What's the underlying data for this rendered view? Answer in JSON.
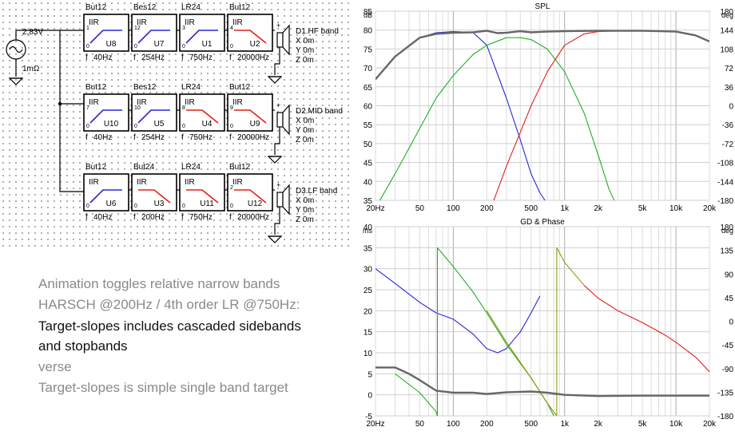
{
  "source": {
    "voltage": "2,83V",
    "resistance": "1mΩ"
  },
  "rows": [
    {
      "filters": [
        {
          "type": "But12",
          "id": "U8",
          "num": "1",
          "shape": "hp",
          "freq": "40Hz"
        },
        {
          "type": "Bes12",
          "id": "U7",
          "num": "12",
          "shape": "hp",
          "freq": "254Hz"
        },
        {
          "type": "LR24",
          "id": "U1",
          "num": "3",
          "shape": "hp",
          "freq": "750Hz"
        },
        {
          "type": "But12",
          "id": "U2",
          "num": "4",
          "shape": "lp",
          "freq": "20000Hz"
        }
      ],
      "driver": {
        "name": "D1.HF band",
        "x": "X 0m",
        "y": "Y 0m",
        "z": "Z 0m"
      }
    },
    {
      "filters": [
        {
          "type": "But12",
          "id": "U10",
          "num": "7",
          "shape": "hp",
          "freq": "40Hz"
        },
        {
          "type": "Bes12",
          "id": "U5",
          "num": "10",
          "shape": "hp",
          "freq": "254Hz"
        },
        {
          "type": "LR24",
          "id": "U4",
          "num": "8",
          "shape": "lp",
          "freq": "750Hz"
        },
        {
          "type": "But12",
          "id": "U9",
          "num": "9",
          "shape": "lp",
          "freq": "20000Hz"
        }
      ],
      "driver": {
        "name": "D2.MID band",
        "x": "X 0m",
        "y": "Y 0m",
        "z": "Z 0m"
      }
    },
    {
      "filters": [
        {
          "type": "But12",
          "id": "U6",
          "num": "",
          "shape": "hp",
          "freq": "40Hz"
        },
        {
          "type": "But24",
          "id": "U3",
          "num": "",
          "shape": "lp",
          "freq": "200Hz"
        },
        {
          "type": "LR24",
          "id": "U11",
          "num": "",
          "shape": "lp",
          "freq": "750Hz"
        },
        {
          "type": "But12",
          "id": "U12",
          "num": "2",
          "shape": "lp",
          "freq": "20000Hz"
        }
      ],
      "driver": {
        "name": "D3.LF band",
        "x": "X 0m",
        "y": "Y 0m",
        "z": "Z 0m"
      }
    }
  ],
  "block_label": "IIR",
  "caption": {
    "line1": "Animation toggles relative narrow bands",
    "line2": "HARSCH @200Hz / 4th order LR @750Hz:",
    "line3": "Target-slopes includes cascaded sidebands",
    "line4": "and stopbands",
    "line5": "verse",
    "line6": "Target-slopes is simple single band target"
  },
  "colors": {
    "hf": "#e02020",
    "mid": "#20b020",
    "lf": "#2828d8",
    "sum": "#666666",
    "olive": "#8a9a10",
    "grid": "#c8c8c8"
  },
  "chart_data": [
    {
      "type": "line",
      "title": "SPL",
      "xscale": "log",
      "xlim": [
        20,
        20000
      ],
      "x_ticks": [
        20,
        50,
        100,
        200,
        500,
        1000,
        2000,
        5000,
        10000,
        20000
      ],
      "x_tick_labels": [
        "20Hz",
        "50",
        "100",
        "200",
        "500",
        "1k",
        "2k",
        "5k",
        "10k",
        "20k"
      ],
      "ylim": [
        35,
        85
      ],
      "y_ticks": [
        35,
        40,
        45,
        50,
        55,
        60,
        65,
        70,
        75,
        80,
        85
      ],
      "y_unit": "dB",
      "y2lim": [
        -180,
        180
      ],
      "y2_ticks": [
        -180,
        -144,
        -108,
        -72,
        -36,
        0,
        36,
        72,
        108,
        144,
        180
      ],
      "y2_unit": "deg",
      "series": [
        {
          "key": "lf",
          "x": [
            20,
            30,
            50,
            70,
            100,
            150,
            200,
            300,
            400,
            500,
            600,
            700
          ],
          "y": [
            67,
            73,
            78,
            79.3,
            79.6,
            79.4,
            76,
            62,
            51,
            42,
            37,
            34
          ]
        },
        {
          "key": "mid",
          "x": [
            20,
            30,
            50,
            70,
            100,
            150,
            200,
            300,
            400,
            500,
            700,
            1000,
            1500,
            2000,
            2500,
            3000
          ],
          "y": [
            33,
            42,
            54,
            62,
            68,
            73.5,
            76,
            78,
            78,
            77.5,
            75,
            69,
            58,
            47,
            38,
            33
          ]
        },
        {
          "key": "hf",
          "x": [
            200,
            300,
            400,
            500,
            700,
            1000,
            1500,
            2000,
            3000,
            5000,
            10000,
            15000,
            20000
          ],
          "y": [
            30,
            44,
            53,
            60,
            69,
            76,
            79,
            79.6,
            79.8,
            79.8,
            79.6,
            78.6,
            77
          ]
        },
        {
          "key": "sum",
          "x": [
            20,
            30,
            50,
            70,
            100,
            150,
            200,
            250,
            300,
            400,
            500,
            700,
            1000,
            2000,
            5000,
            10000,
            15000,
            20000
          ],
          "y": [
            67,
            73,
            78,
            79,
            79.3,
            79.4,
            79.8,
            79.2,
            79.3,
            79.7,
            79.4,
            79.6,
            79.7,
            79.8,
            79.8,
            79.6,
            78.6,
            77
          ]
        }
      ]
    },
    {
      "type": "line",
      "title": "GD & Phase",
      "xscale": "log",
      "xlim": [
        20,
        20000
      ],
      "x_ticks": [
        20,
        50,
        100,
        200,
        500,
        1000,
        2000,
        5000,
        10000,
        20000
      ],
      "x_tick_labels": [
        "20Hz",
        "50",
        "100",
        "200",
        "500",
        "1k",
        "2k",
        "5k",
        "10k",
        "20k"
      ],
      "ylim": [
        -5,
        40
      ],
      "y_ticks": [
        -5,
        0,
        5,
        10,
        15,
        20,
        25,
        30,
        35,
        40
      ],
      "y_unit": "ms",
      "y2lim": [
        -180,
        180
      ],
      "y2_ticks": [
        -180,
        -135,
        -90,
        -45,
        0,
        45,
        90,
        135,
        180
      ],
      "y2_unit": "deg",
      "series": [
        {
          "key": "lf",
          "x": [
            20,
            30,
            50,
            70,
            100,
            150,
            200,
            250,
            300,
            400,
            500,
            600
          ],
          "y": [
            30,
            26.5,
            22,
            19.5,
            18,
            14.5,
            11,
            10,
            11,
            15,
            19.5,
            23.5
          ]
        },
        {
          "key": "mid",
          "x": [
            30,
            50,
            70,
            72
          ],
          "y": [
            5,
            0.5,
            -4,
            -5
          ],
          "x2": [
            72,
            100,
            150,
            200,
            300,
            500,
            700,
            800
          ],
          "y2": [
            35,
            30.5,
            24.5,
            19.5,
            12,
            4,
            -2,
            -5
          ]
        },
        {
          "key": "olive",
          "x": [
            200,
            300,
            500,
            700,
            850
          ],
          "y": [
            20,
            12.5,
            4,
            -2,
            -5
          ],
          "x2": [
            850,
            1000,
            1500
          ],
          "y2": [
            35,
            31.5,
            26
          ]
        },
        {
          "key": "hf",
          "x": [
            1500,
            2000,
            3000,
            5000,
            8000,
            10000,
            15000,
            20000
          ],
          "y": [
            26,
            23,
            20,
            17.2,
            14.2,
            12.5,
            9,
            5.5
          ]
        },
        {
          "key": "sum",
          "x": [
            20,
            30,
            40,
            50,
            70,
            100,
            150,
            200,
            300,
            500,
            700,
            1000,
            2000,
            5000,
            20000
          ],
          "y": [
            6.5,
            6.5,
            5,
            3.5,
            1,
            0.5,
            0.5,
            0.2,
            0.6,
            0.8,
            0.5,
            0,
            -0.3,
            -0.2,
            -0.2
          ]
        }
      ]
    }
  ]
}
